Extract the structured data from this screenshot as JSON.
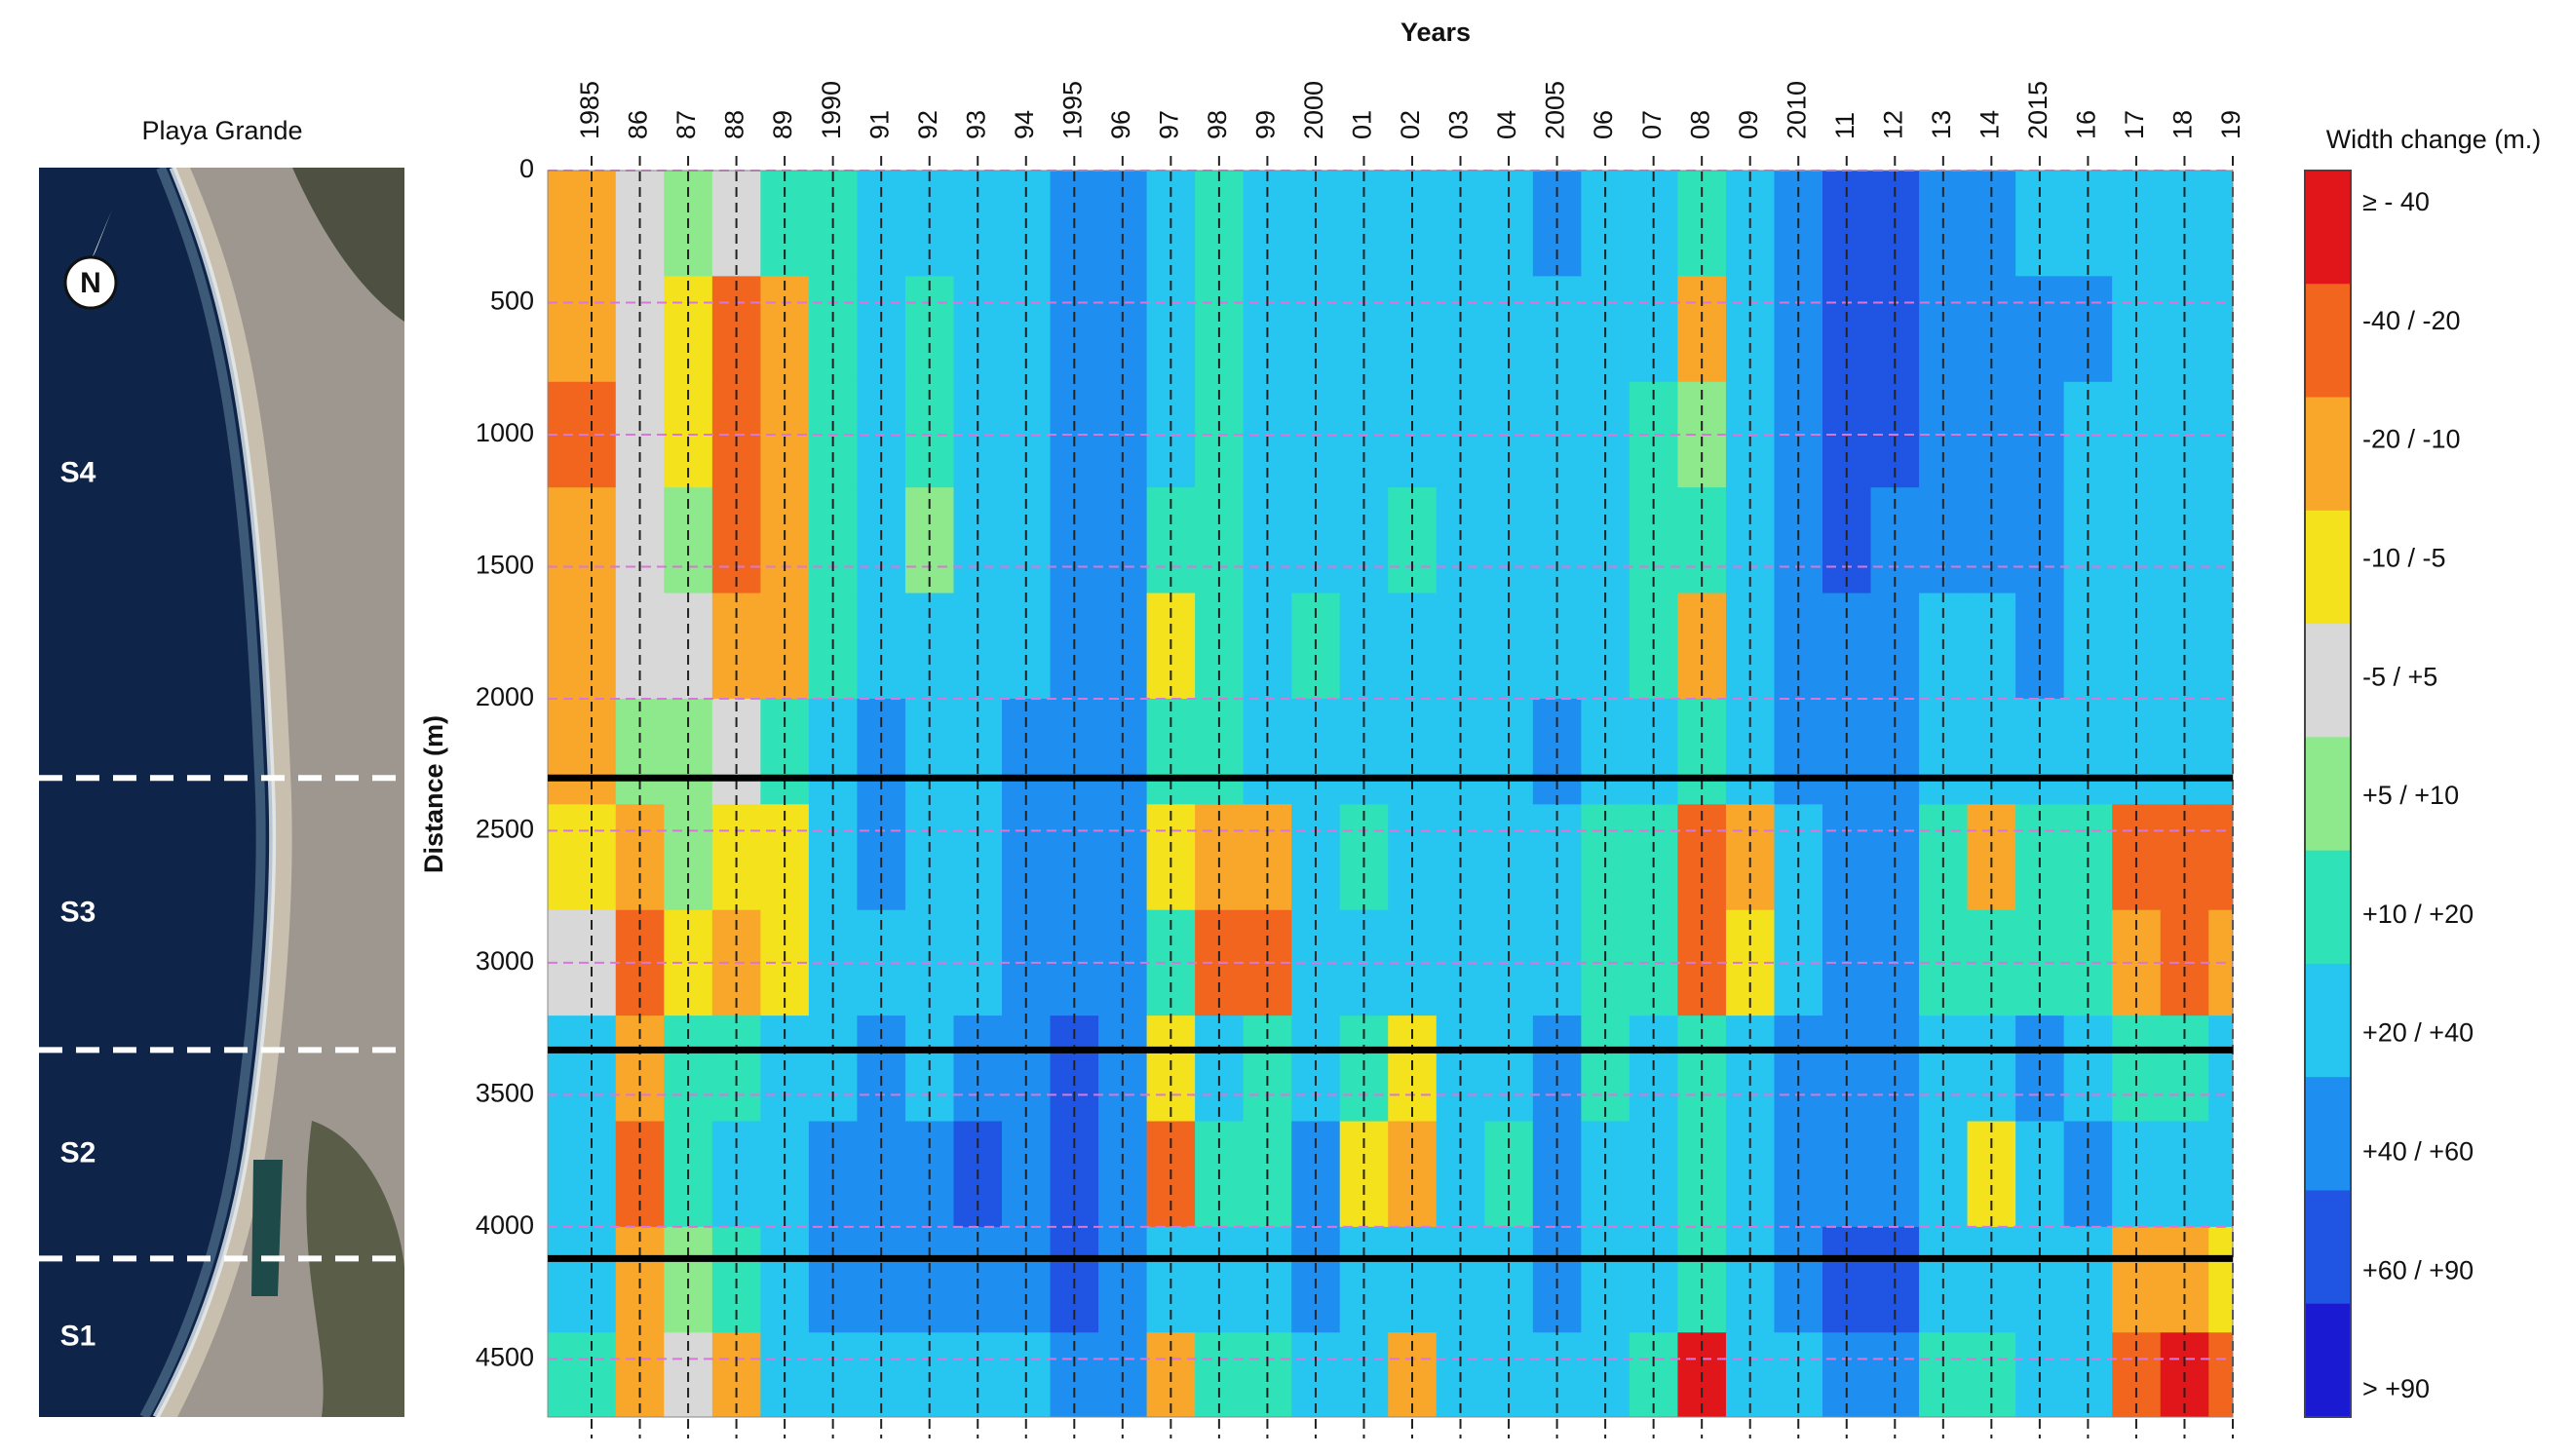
{
  "chart_data": {
    "type": "heatmap",
    "x_label": "Years",
    "y_label": "Distance (m)",
    "categories": [
      "1985",
      "86",
      "87",
      "88",
      "89",
      "1990",
      "91",
      "92",
      "93",
      "94",
      "1995",
      "96",
      "97",
      "98",
      "99",
      "2000",
      "01",
      "02",
      "03",
      "04",
      "2005",
      "06",
      "07",
      "08",
      "09",
      "2010",
      "11",
      "12",
      "13",
      "14",
      "2015",
      "16",
      "17",
      "18",
      "19"
    ],
    "y": [
      200,
      600,
      1000,
      1400,
      1800,
      2200,
      2600,
      3000,
      3400,
      3800,
      4200,
      4600
    ],
    "values": [
      [
        -15,
        5,
        7,
        0,
        15,
        15,
        30,
        30,
        30,
        30,
        50,
        50,
        30,
        15,
        30,
        30,
        30,
        30,
        30,
        30,
        50,
        30,
        30,
        15,
        30,
        50,
        75,
        75,
        50,
        50,
        30,
        30,
        30,
        30,
        30
      ],
      [
        -15,
        5,
        -7,
        -30,
        -15,
        15,
        30,
        15,
        30,
        30,
        50,
        50,
        30,
        15,
        30,
        30,
        30,
        30,
        30,
        30,
        30,
        30,
        30,
        -15,
        30,
        50,
        75,
        75,
        50,
        50,
        50,
        50,
        30,
        30,
        30
      ],
      [
        -30,
        0,
        -7,
        -30,
        -15,
        15,
        30,
        15,
        30,
        30,
        50,
        50,
        30,
        15,
        30,
        30,
        30,
        30,
        30,
        30,
        30,
        30,
        15,
        7,
        30,
        50,
        75,
        75,
        50,
        50,
        50,
        30,
        30,
        30,
        30
      ],
      [
        -15,
        0,
        7,
        -30,
        -15,
        15,
        30,
        7,
        30,
        30,
        50,
        50,
        15,
        15,
        30,
        30,
        30,
        15,
        30,
        30,
        30,
        30,
        15,
        15,
        30,
        50,
        75,
        50,
        50,
        50,
        50,
        30,
        30,
        30,
        30
      ],
      [
        -15,
        0,
        0,
        -15,
        -15,
        15,
        30,
        30,
        30,
        30,
        50,
        50,
        -7,
        15,
        30,
        15,
        30,
        30,
        30,
        30,
        30,
        30,
        15,
        -15,
        30,
        50,
        50,
        50,
        30,
        30,
        50,
        30,
        30,
        30,
        30
      ],
      [
        -15,
        7,
        7,
        0,
        15,
        30,
        50,
        30,
        30,
        50,
        50,
        50,
        15,
        15,
        30,
        30,
        30,
        30,
        30,
        30,
        50,
        30,
        30,
        15,
        30,
        50,
        50,
        50,
        30,
        30,
        30,
        30,
        30,
        30,
        30
      ],
      [
        -7,
        -15,
        7,
        -7,
        -7,
        30,
        50,
        30,
        30,
        50,
        50,
        50,
        -7,
        -15,
        -15,
        30,
        15,
        30,
        30,
        30,
        30,
        15,
        15,
        -30,
        -15,
        30,
        50,
        50,
        15,
        -15,
        15,
        15,
        -30,
        -30,
        -30
      ],
      [
        0,
        -30,
        -7,
        -15,
        -7,
        30,
        30,
        30,
        30,
        50,
        50,
        50,
        15,
        -30,
        -30,
        30,
        30,
        30,
        30,
        30,
        30,
        15,
        15,
        -30,
        -7,
        30,
        50,
        50,
        15,
        15,
        15,
        15,
        -15,
        -30,
        -15
      ],
      [
        30,
        -15,
        15,
        15,
        30,
        30,
        50,
        30,
        50,
        50,
        75,
        50,
        -7,
        30,
        15,
        30,
        15,
        -7,
        30,
        30,
        50,
        15,
        30,
        15,
        30,
        50,
        50,
        50,
        30,
        30,
        50,
        30,
        15,
        15,
        30
      ],
      [
        30,
        -30,
        15,
        30,
        30,
        50,
        50,
        50,
        75,
        50,
        75,
        50,
        -30,
        15,
        15,
        50,
        -7,
        -15,
        30,
        15,
        50,
        30,
        30,
        15,
        30,
        50,
        50,
        50,
        30,
        -7,
        30,
        50,
        30,
        30,
        30
      ],
      [
        30,
        -15,
        7,
        15,
        30,
        50,
        50,
        50,
        50,
        50,
        75,
        50,
        30,
        30,
        30,
        50,
        30,
        30,
        30,
        30,
        50,
        30,
        30,
        15,
        30,
        50,
        75,
        75,
        30,
        30,
        30,
        30,
        -15,
        -15,
        -7
      ],
      [
        15,
        -15,
        0,
        -15,
        30,
        30,
        30,
        30,
        30,
        30,
        50,
        50,
        -15,
        15,
        15,
        30,
        30,
        -15,
        30,
        30,
        30,
        30,
        15,
        -50,
        30,
        30,
        50,
        50,
        15,
        15,
        30,
        30,
        -30,
        -50,
        -30
      ]
    ],
    "ylim": [
      0,
      4720
    ],
    "yticks": [
      0,
      500,
      1000,
      1500,
      2000,
      2500,
      3000,
      3500,
      4000,
      4500
    ],
    "grid": true,
    "legend": {
      "title": "Width change (m.)",
      "labels": [
        "≥ - 40",
        "-40 / -20",
        "-20 / -10",
        "-10 / -5",
        "-5 / +5",
        "+5 / +10",
        "+10 / +20",
        "+20 / +40",
        "+40 / +60",
        "+60 / +90",
        "> +90"
      ],
      "bounds": [
        -40,
        -20,
        -10,
        -5,
        5,
        10,
        20,
        40,
        60,
        90
      ],
      "colors": [
        "#e0161b",
        "#f2651e",
        "#f9a72b",
        "#f4e21c",
        "#d8d8d8",
        "#8ee88c",
        "#2fe2b8",
        "#27c6f0",
        "#1e8ef0",
        "#1f55e2",
        "#1a1ad2"
      ]
    },
    "section_boundaries": [
      2300,
      3330,
      4120
    ]
  },
  "map_panel": {
    "title": "Playa Grande",
    "north": "N",
    "sections": [
      "S4",
      "S3",
      "S2",
      "S1"
    ]
  }
}
